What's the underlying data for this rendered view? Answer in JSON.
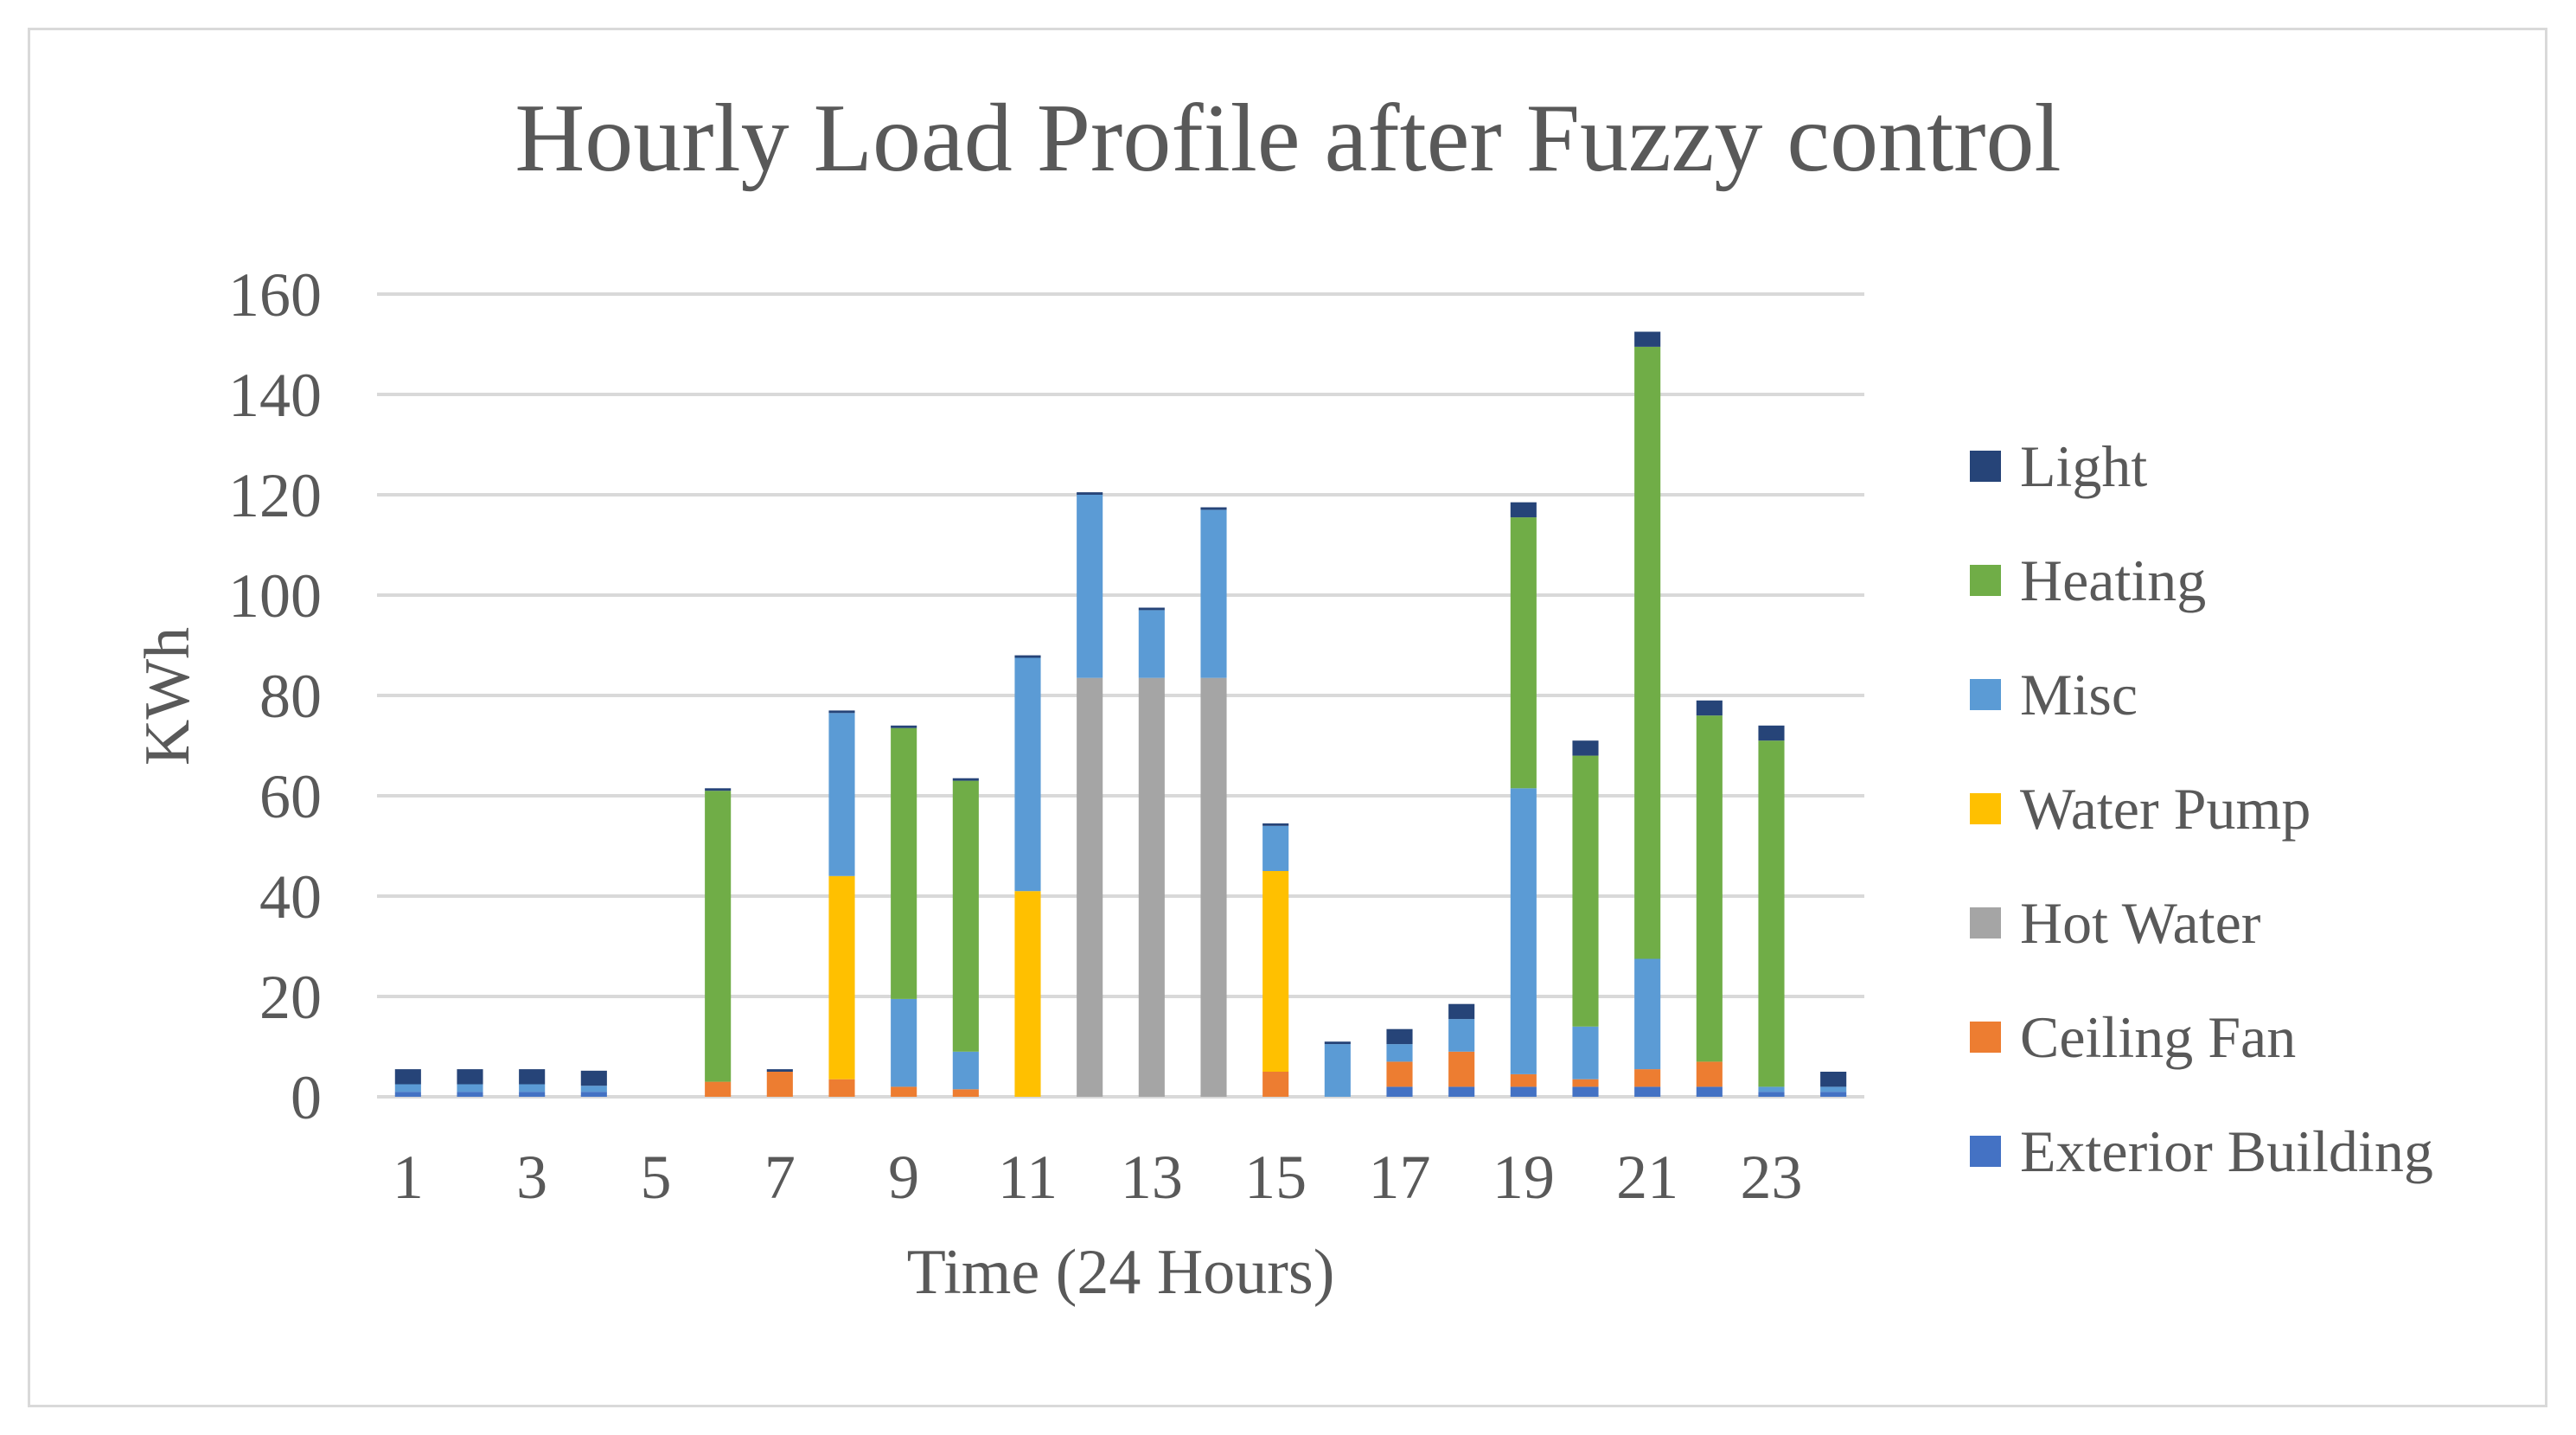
{
  "chart_data": {
    "type": "bar",
    "stacked": true,
    "title": "Hourly Load Profile after Fuzzy control",
    "xlabel": "Time (24 Hours)",
    "ylabel": "KWh",
    "ylim": [
      0,
      160
    ],
    "yticks": [
      0,
      20,
      40,
      60,
      80,
      100,
      120,
      140,
      160
    ],
    "categories": [
      1,
      2,
      3,
      4,
      5,
      6,
      7,
      8,
      9,
      10,
      11,
      12,
      13,
      14,
      15,
      16,
      17,
      18,
      19,
      20,
      21,
      22,
      23,
      24
    ],
    "xtick_labels": [
      "1",
      "",
      "3",
      "",
      "5",
      "",
      "7",
      "",
      "9",
      "",
      "11",
      "",
      "13",
      "",
      "15",
      "",
      "17",
      "",
      "19",
      "",
      "21",
      "",
      "23",
      ""
    ],
    "grid": true,
    "legend_position": "right",
    "series": [
      {
        "name": "Exterior Building",
        "color": "#4472c4",
        "values": [
          1,
          1,
          1,
          1,
          0,
          0,
          0,
          0,
          0,
          0,
          0,
          0,
          0,
          0,
          0,
          0,
          2,
          2,
          2,
          2,
          2,
          2,
          1,
          1
        ]
      },
      {
        "name": "Ceiling Fan",
        "color": "#ed7d31",
        "values": [
          0,
          0,
          0,
          0,
          0,
          3,
          5,
          3.5,
          2,
          1.5,
          0,
          0,
          0,
          0,
          5,
          0,
          5,
          7,
          2.5,
          1.5,
          3.5,
          5,
          0,
          0
        ]
      },
      {
        "name": "Hot Water",
        "color": "#a5a5a5",
        "values": [
          0,
          0,
          0,
          0,
          0,
          0,
          0,
          0,
          0,
          0,
          0,
          83.5,
          83.5,
          83.5,
          0,
          0,
          0,
          0,
          0,
          0,
          0,
          0,
          0,
          0
        ]
      },
      {
        "name": "Water Pump",
        "color": "#ffc000",
        "values": [
          0,
          0,
          0,
          0,
          0,
          0,
          0,
          40.5,
          0,
          0,
          41,
          0,
          0,
          0,
          40,
          0,
          0,
          0,
          0,
          0,
          0,
          0,
          0,
          0
        ]
      },
      {
        "name": "Misc",
        "color": "#5b9bd5",
        "values": [
          1.5,
          1.5,
          1.5,
          1.2,
          0,
          0,
          0,
          32.5,
          17.5,
          7.5,
          46.5,
          36.5,
          13.5,
          33.5,
          9,
          10.5,
          3.5,
          6.5,
          57,
          10.5,
          22,
          0,
          1,
          1
        ]
      },
      {
        "name": "Heating",
        "color": "#70ad47",
        "values": [
          0,
          0,
          0,
          0,
          0,
          58,
          0,
          0,
          54,
          54,
          0,
          0,
          0,
          0,
          0,
          0,
          0,
          0,
          54,
          54,
          122,
          69,
          69,
          0
        ]
      },
      {
        "name": "Light",
        "color": "#264478",
        "values": [
          3,
          3,
          3,
          3,
          0,
          0.5,
          0.5,
          0.5,
          0.5,
          0.5,
          0.5,
          0.5,
          0.5,
          0.5,
          0.5,
          0.5,
          3,
          3,
          3,
          3,
          3,
          3,
          3,
          3
        ]
      }
    ]
  }
}
